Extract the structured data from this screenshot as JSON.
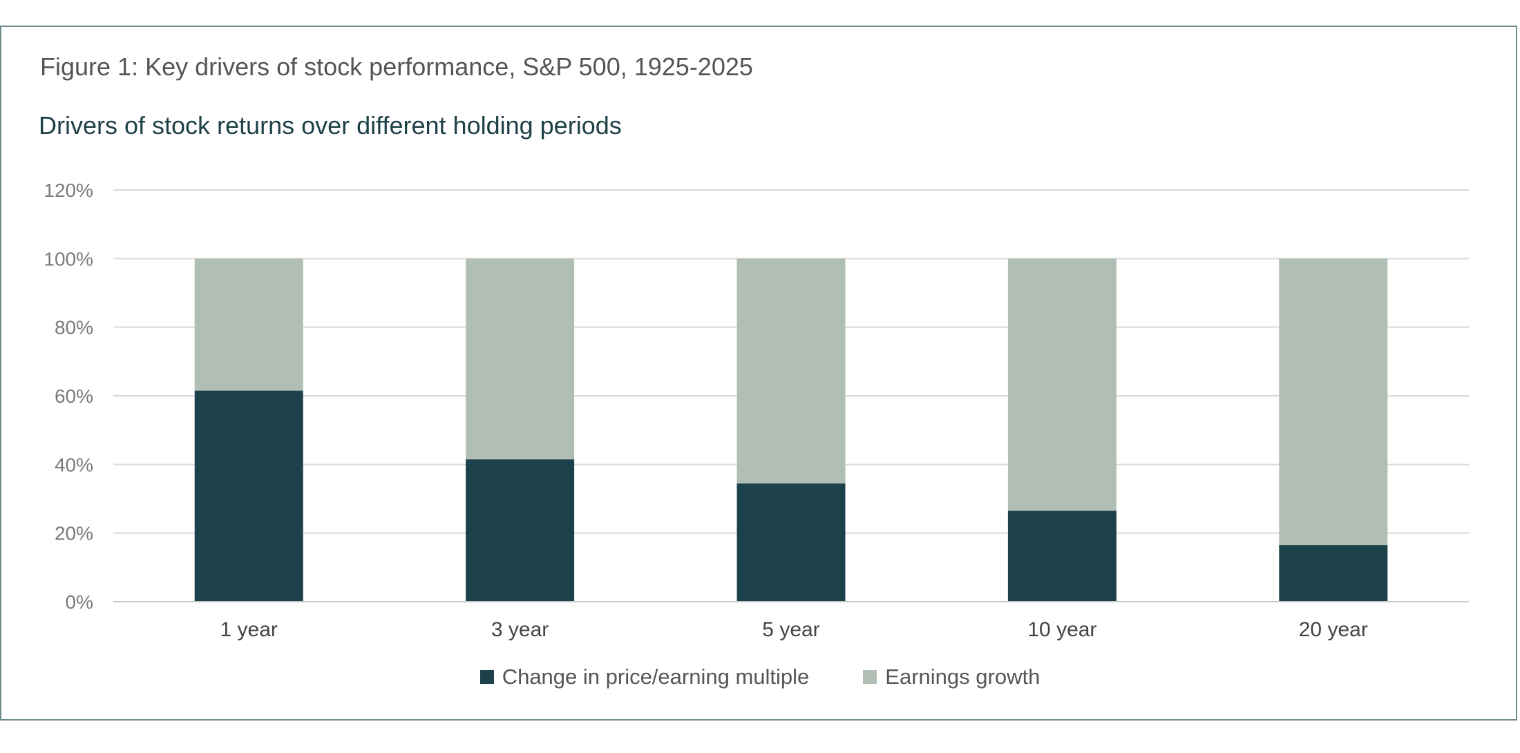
{
  "figure_title": "Figure 1: Key drivers of stock performance, S&P 500, 1925-2025",
  "chart_data": {
    "type": "bar",
    "stacked": true,
    "title": "Drivers of stock returns over different holding periods",
    "xlabel": "",
    "ylabel": "",
    "categories": [
      "1 year",
      "3 year",
      "5 year",
      "10 year",
      "20 year"
    ],
    "series": [
      {
        "name": "Change in price/earning multiple",
        "color": "#1d414a",
        "values": [
          61.5,
          41.5,
          34.5,
          26.5,
          16.5
        ]
      },
      {
        "name": "Earnings growth",
        "color": "#b1beb3",
        "values": [
          38.5,
          58.5,
          65.5,
          73.5,
          83.5
        ]
      }
    ],
    "ylim": [
      0,
      120
    ],
    "yticks": [
      "0%",
      "20%",
      "40%",
      "60%",
      "80%",
      "100%",
      "120%"
    ],
    "grid": true,
    "legend_position": "bottom"
  }
}
